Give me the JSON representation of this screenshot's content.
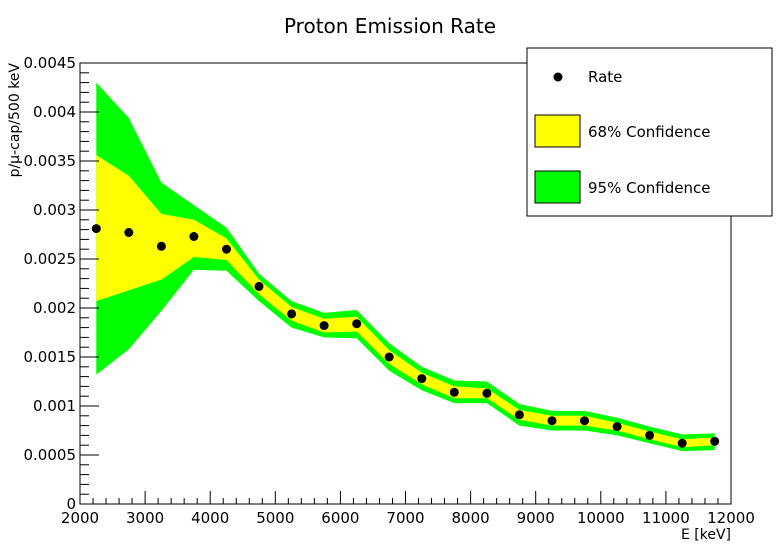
{
  "chart_data": {
    "type": "scatter",
    "title": "Proton Emission Rate",
    "xlabel": "E [keV]",
    "ylabel": "p/µ-cap/500 keV",
    "xlim": [
      2000,
      12000
    ],
    "ylim": [
      0,
      0.0045
    ],
    "x_ticks": [
      2000,
      3000,
      4000,
      5000,
      6000,
      7000,
      8000,
      9000,
      10000,
      11000,
      12000
    ],
    "x_tick_labels": [
      "2000",
      "3000",
      "4000",
      "5000",
      "6000",
      "7000",
      "8000",
      "9000",
      "10000",
      "11000",
      "12000"
    ],
    "y_ticks": [
      0,
      0.0005,
      0.001,
      0.0015,
      0.002,
      0.0025,
      0.003,
      0.0035,
      0.004,
      0.0045
    ],
    "y_tick_labels": [
      "0",
      "0.0005",
      "0.001",
      "0.0015",
      "0.002",
      "0.0025",
      "0.003",
      "0.0035",
      "0.004",
      "0.0045"
    ],
    "legend_position": "top-right",
    "colors": {
      "rate": "#000000",
      "band68": "#ffff00",
      "band95": "#00ff00"
    },
    "series": [
      {
        "name": "Rate",
        "x": [
          2250,
          2750,
          3250,
          3750,
          4250,
          4750,
          5250,
          5750,
          6250,
          6750,
          7250,
          7750,
          8250,
          8750,
          9250,
          9750,
          10250,
          10750,
          11250,
          11750
        ],
        "y": [
          0.00281,
          0.00277,
          0.00263,
          0.00273,
          0.0026,
          0.00222,
          0.00194,
          0.00182,
          0.00184,
          0.0015,
          0.00128,
          0.00114,
          0.00113,
          0.00091,
          0.00085,
          0.00085,
          0.00079,
          0.0007,
          0.00062,
          0.00064
        ]
      },
      {
        "name": "68% Confidence",
        "x": [
          2250,
          2750,
          3250,
          3750,
          4250,
          4750,
          5250,
          5750,
          6250,
          6750,
          7250,
          7750,
          8250,
          8750,
          9250,
          9750,
          10250,
          10750,
          11250,
          11750
        ],
        "low": [
          0.00207,
          0.00218,
          0.00229,
          0.00252,
          0.00249,
          0.00214,
          0.00187,
          0.00175,
          0.00176,
          0.00143,
          0.00122,
          0.00108,
          0.00108,
          0.00086,
          0.0008,
          0.0008,
          0.00075,
          0.00066,
          0.00058,
          0.0006
        ],
        "high": [
          0.00356,
          0.00335,
          0.00296,
          0.0029,
          0.00271,
          0.00229,
          0.00201,
          0.00189,
          0.00191,
          0.00157,
          0.00134,
          0.0012,
          0.00118,
          0.00096,
          0.0009,
          0.0009,
          0.00083,
          0.00074,
          0.00066,
          0.00068
        ]
      },
      {
        "name": "95% Confidence",
        "x": [
          2250,
          2750,
          3250,
          3750,
          4250,
          4750,
          5250,
          5750,
          6250,
          6750,
          7250,
          7750,
          8250,
          8750,
          9250,
          9750,
          10250,
          10750,
          11250,
          11750
        ],
        "low": [
          0.00132,
          0.00158,
          0.00197,
          0.00239,
          0.00238,
          0.00207,
          0.0018,
          0.0017,
          0.00169,
          0.00136,
          0.00116,
          0.00103,
          0.00103,
          0.0008,
          0.00075,
          0.00075,
          0.0007,
          0.00062,
          0.00054,
          0.00055
        ],
        "high": [
          0.0043,
          0.00394,
          0.00328,
          0.00305,
          0.00282,
          0.00235,
          0.00207,
          0.00195,
          0.00198,
          0.00164,
          0.0014,
          0.00126,
          0.00125,
          0.00102,
          0.00095,
          0.00095,
          0.00088,
          0.00079,
          0.00071,
          0.00072
        ]
      }
    ]
  }
}
